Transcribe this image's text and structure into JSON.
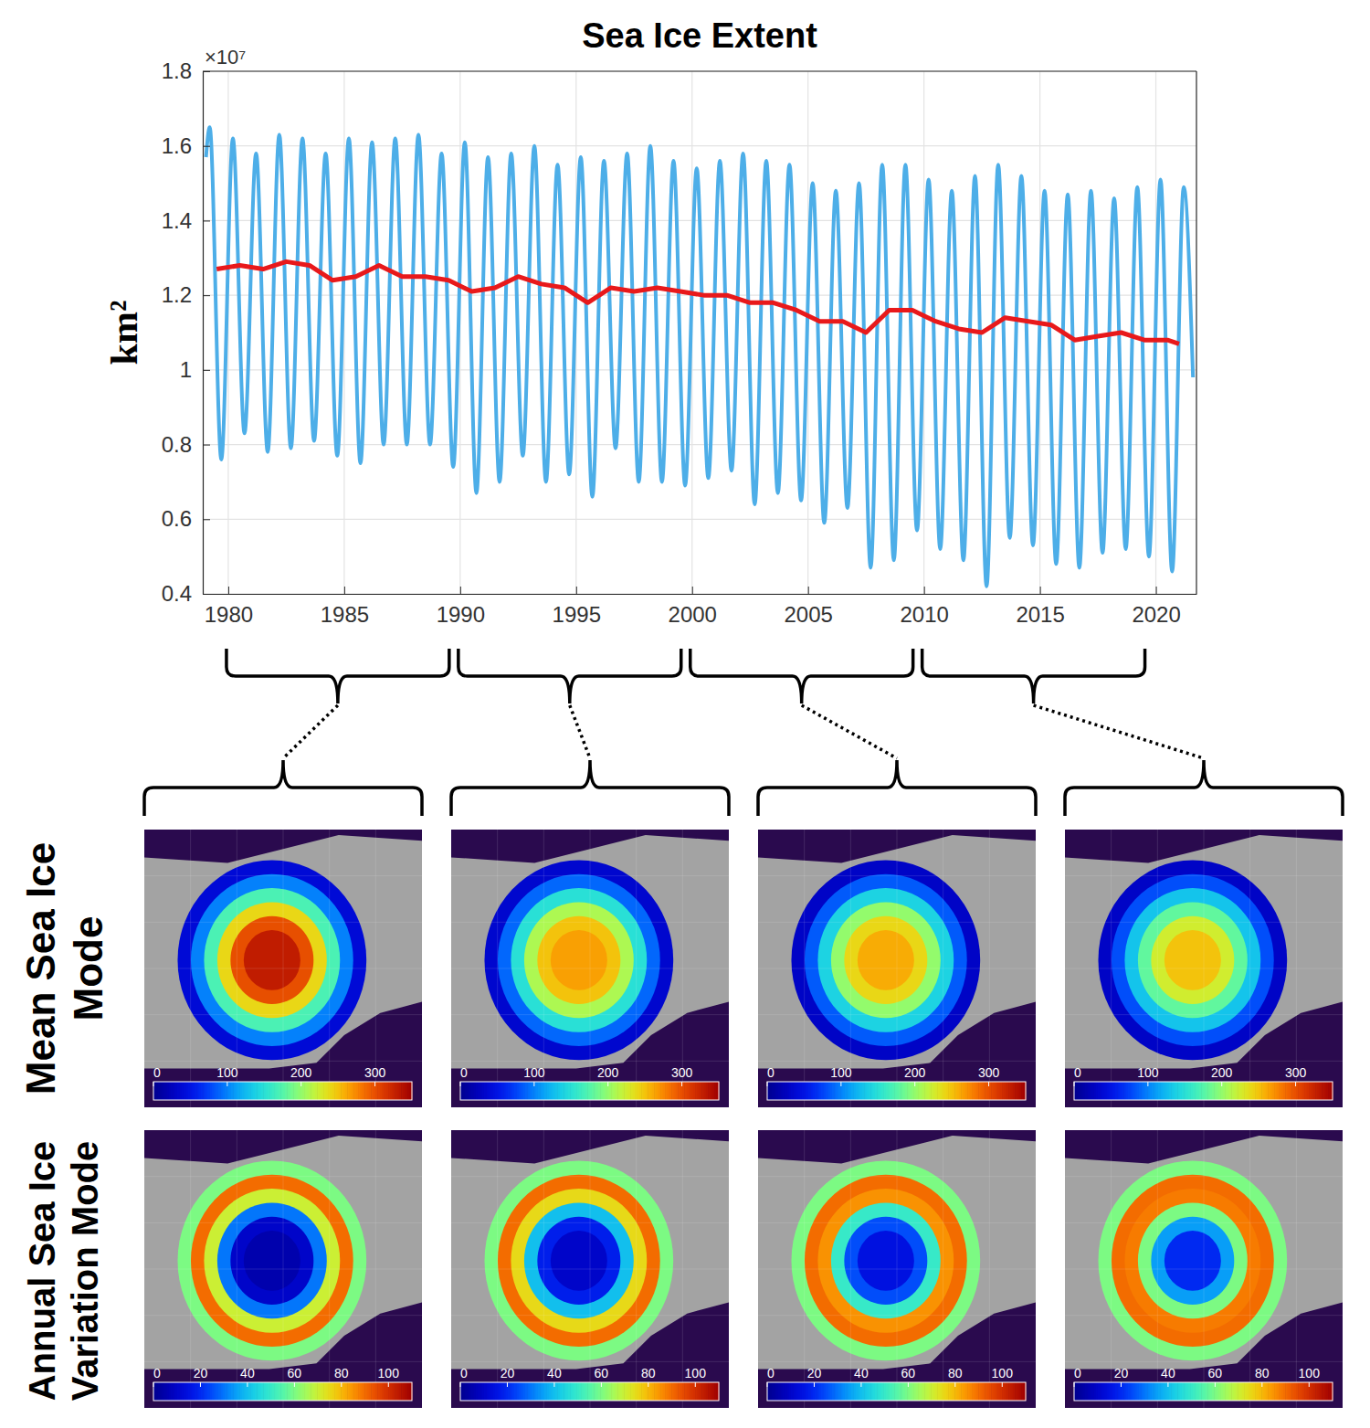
{
  "chart_data": [
    {
      "type": "line",
      "title": "Sea Ice Extent",
      "y_label": "km²",
      "y_offset_label": "×10⁷",
      "xlim": [
        1978.9,
        2021.75
      ],
      "xticks": [
        1980,
        1985,
        1990,
        1995,
        2000,
        2005,
        2010,
        2015,
        2020
      ],
      "ylim": [
        0.4,
        1.8
      ],
      "yticks": [
        0.4,
        0.6,
        0.8,
        1,
        1.2,
        1.4,
        1.6,
        1.8
      ],
      "grid": true,
      "series": [
        {
          "color": "#4daee8",
          "line_style": "solid",
          "x": [
            1979.04,
            1979.2,
            1979.7,
            1980.2,
            1980.7,
            1981.2,
            1981.7,
            1982.2,
            1982.7,
            1983.2,
            1983.7,
            1984.2,
            1984.7,
            1985.2,
            1985.7,
            1986.2,
            1986.7,
            1987.2,
            1987.7,
            1988.2,
            1988.7,
            1989.2,
            1989.7,
            1990.2,
            1990.7,
            1991.2,
            1991.7,
            1992.2,
            1992.7,
            1993.2,
            1993.7,
            1994.2,
            1994.7,
            1995.2,
            1995.7,
            1996.2,
            1996.7,
            1997.2,
            1997.7,
            1998.2,
            1998.7,
            1999.2,
            1999.7,
            2000.2,
            2000.7,
            2001.2,
            2001.7,
            2002.2,
            2002.7,
            2003.2,
            2003.7,
            2004.2,
            2004.7,
            2005.2,
            2005.7,
            2006.2,
            2006.7,
            2007.2,
            2007.7,
            2008.2,
            2008.7,
            2009.2,
            2009.7,
            2010.2,
            2010.7,
            2011.2,
            2011.7,
            2012.2,
            2012.7,
            2013.2,
            2013.7,
            2014.2,
            2014.7,
            2015.2,
            2015.7,
            2016.2,
            2016.7,
            2017.2,
            2017.7,
            2018.2,
            2018.7,
            2019.2,
            2019.7,
            2020.2,
            2020.7,
            2021.2,
            2021.6
          ],
          "values": [
            1.57,
            1.65,
            0.76,
            1.62,
            0.83,
            1.58,
            0.78,
            1.63,
            0.79,
            1.62,
            0.81,
            1.58,
            0.77,
            1.62,
            0.75,
            1.61,
            0.8,
            1.62,
            0.8,
            1.63,
            0.8,
            1.58,
            0.74,
            1.61,
            0.67,
            1.57,
            0.7,
            1.58,
            0.77,
            1.6,
            0.7,
            1.55,
            0.72,
            1.57,
            0.66,
            1.56,
            0.79,
            1.58,
            0.7,
            1.6,
            0.7,
            1.56,
            0.69,
            1.54,
            0.71,
            1.56,
            0.73,
            1.58,
            0.64,
            1.56,
            0.67,
            1.55,
            0.65,
            1.5,
            0.59,
            1.48,
            0.63,
            1.5,
            0.47,
            1.55,
            0.49,
            1.55,
            0.57,
            1.51,
            0.52,
            1.48,
            0.49,
            1.52,
            0.42,
            1.55,
            0.55,
            1.52,
            0.53,
            1.48,
            0.48,
            1.47,
            0.47,
            1.48,
            0.51,
            1.46,
            0.52,
            1.49,
            0.5,
            1.51,
            0.46,
            1.49,
            0.98
          ]
        },
        {
          "color": "#e8191b",
          "line_style": "solid",
          "x": [
            1979.5,
            1980.5,
            1981.5,
            1982.5,
            1983.5,
            1984.5,
            1985.5,
            1986.5,
            1987.5,
            1988.5,
            1989.5,
            1990.5,
            1991.5,
            1992.5,
            1993.5,
            1994.5,
            1995.5,
            1996.5,
            1997.5,
            1998.5,
            1999.5,
            2000.5,
            2001.5,
            2002.5,
            2003.5,
            2004.5,
            2005.5,
            2006.5,
            2007.5,
            2008.5,
            2009.5,
            2010.5,
            2011.5,
            2012.5,
            2013.5,
            2014.5,
            2015.5,
            2016.5,
            2017.5,
            2018.5,
            2019.5,
            2020.5,
            2021.0
          ],
          "values": [
            1.27,
            1.28,
            1.27,
            1.29,
            1.28,
            1.24,
            1.25,
            1.28,
            1.25,
            1.25,
            1.24,
            1.21,
            1.22,
            1.25,
            1.23,
            1.22,
            1.18,
            1.22,
            1.21,
            1.22,
            1.21,
            1.2,
            1.2,
            1.18,
            1.18,
            1.16,
            1.13,
            1.13,
            1.1,
            1.16,
            1.16,
            1.13,
            1.11,
            1.1,
            1.14,
            1.13,
            1.12,
            1.08,
            1.09,
            1.1,
            1.08,
            1.08,
            1.07
          ]
        }
      ]
    },
    {
      "type": "heatmap",
      "zones": [
        330,
        300,
        240,
        170,
        100,
        40
      ],
      "colorbar": {
        "range": [
          0,
          350
        ],
        "ticks": [
          0,
          100,
          200,
          300
        ]
      }
    },
    {
      "type": "heatmap",
      "zones": [
        265,
        250,
        210,
        150,
        90,
        35
      ],
      "colorbar": {
        "range": [
          0,
          350
        ],
        "ticks": [
          0,
          100,
          200,
          300
        ]
      }
    },
    {
      "type": "heatmap",
      "zones": [
        260,
        240,
        200,
        140,
        85,
        30
      ],
      "colorbar": {
        "range": [
          0,
          350
        ],
        "ticks": [
          0,
          100,
          200,
          300
        ]
      }
    },
    {
      "type": "heatmap",
      "zones": [
        250,
        225,
        180,
        130,
        80,
        30
      ],
      "colorbar": {
        "range": [
          0,
          350
        ],
        "ticks": [
          0,
          100,
          200,
          300
        ]
      }
    },
    {
      "type": "heatmap",
      "zones": [
        5,
        10,
        30,
        70,
        90,
        60
      ],
      "colorbar": {
        "range": [
          0,
          110
        ],
        "ticks": [
          0,
          20,
          40,
          60,
          80,
          100
        ]
      }
    },
    {
      "type": "heatmap",
      "zones": [
        10,
        18,
        40,
        75,
        90,
        60
      ],
      "colorbar": {
        "range": [
          0,
          110
        ],
        "ticks": [
          0,
          20,
          40,
          60,
          80,
          100
        ]
      }
    },
    {
      "type": "heatmap",
      "zones": [
        15,
        25,
        50,
        85,
        90,
        60
      ],
      "colorbar": {
        "range": [
          0,
          110
        ],
        "ticks": [
          0,
          20,
          40,
          60,
          80,
          100
        ]
      }
    },
    {
      "type": "heatmap",
      "zones": [
        20,
        35,
        60,
        88,
        90,
        60
      ],
      "colorbar": {
        "range": [
          0,
          110
        ],
        "ticks": [
          0,
          20,
          40,
          60,
          80,
          100
        ]
      }
    }
  ],
  "row_labels": [
    "Mean Sea Ice Mode",
    "Annual Sea Ice Variation Mode"
  ]
}
